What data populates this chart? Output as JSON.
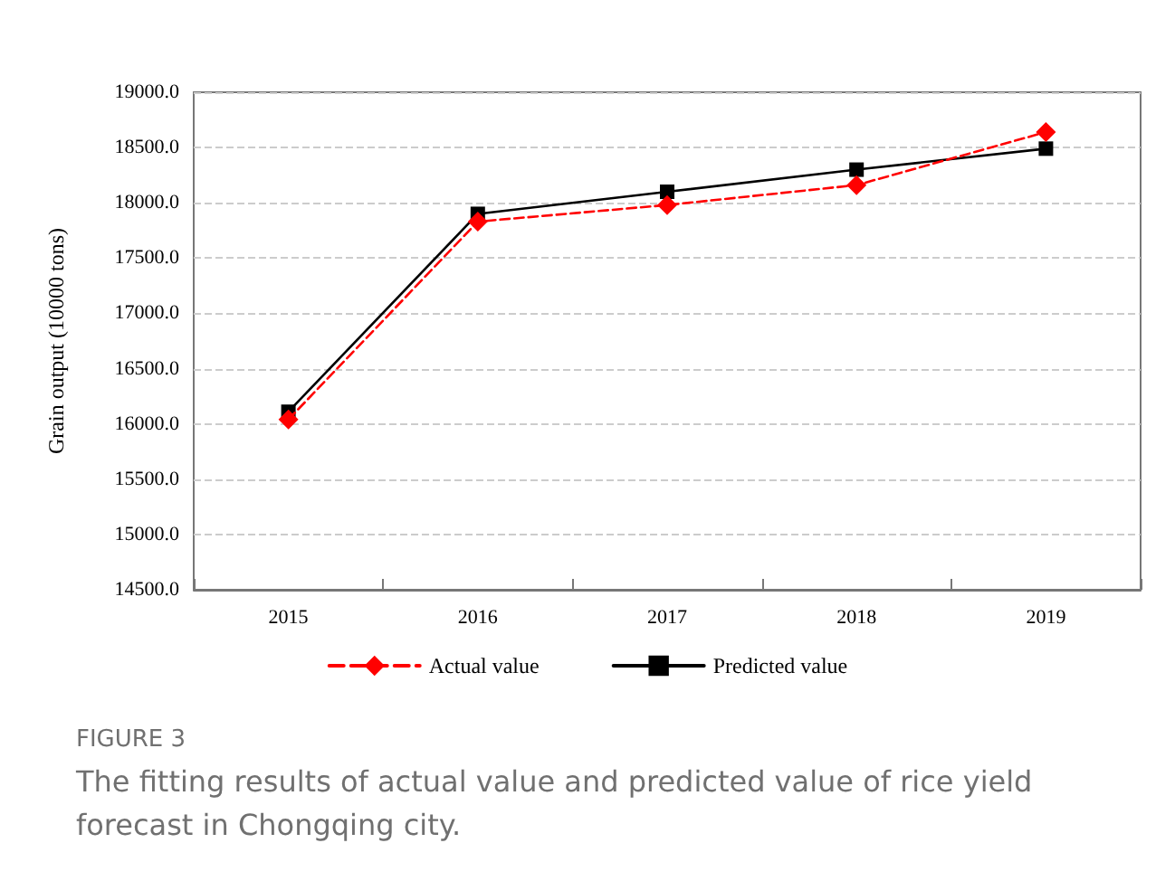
{
  "chart_data": {
    "type": "line",
    "categories": [
      "2015",
      "2016",
      "2017",
      "2018",
      "2019"
    ],
    "ylabel": "Grain output (10000 tons)",
    "series": [
      {
        "name": "Actual value",
        "color": "#ff0000",
        "values": [
          16040,
          17830,
          17980,
          18160,
          18640
        ],
        "marker": "diamond",
        "line_style": "dashed"
      },
      {
        "name": "Predicted value",
        "color": "#000000",
        "values": [
          16110,
          17900,
          18100,
          18300,
          18490
        ],
        "marker": "square",
        "line_style": "solid"
      }
    ],
    "ylim": [
      14500,
      19000
    ],
    "yticks": [
      {
        "value": 14500,
        "label": "14500.0"
      },
      {
        "value": 15000,
        "label": "15000.0"
      },
      {
        "value": 15500,
        "label": "15500.0"
      },
      {
        "value": 16000,
        "label": "16000.0"
      },
      {
        "value": 16500,
        "label": "16500.0"
      },
      {
        "value": 17000,
        "label": "17000.0"
      },
      {
        "value": 17500,
        "label": "17500.0"
      },
      {
        "value": 18000,
        "label": "18000.0"
      },
      {
        "value": 18500,
        "label": "18500.0"
      },
      {
        "value": 19000,
        "label": "19000.0"
      }
    ],
    "grid": "y",
    "legend": "bottom",
    "annotations": [
      "FIGURE 3",
      "The fitting results of actual value and predicted value of rice yield forecast in Chongqing city."
    ]
  }
}
